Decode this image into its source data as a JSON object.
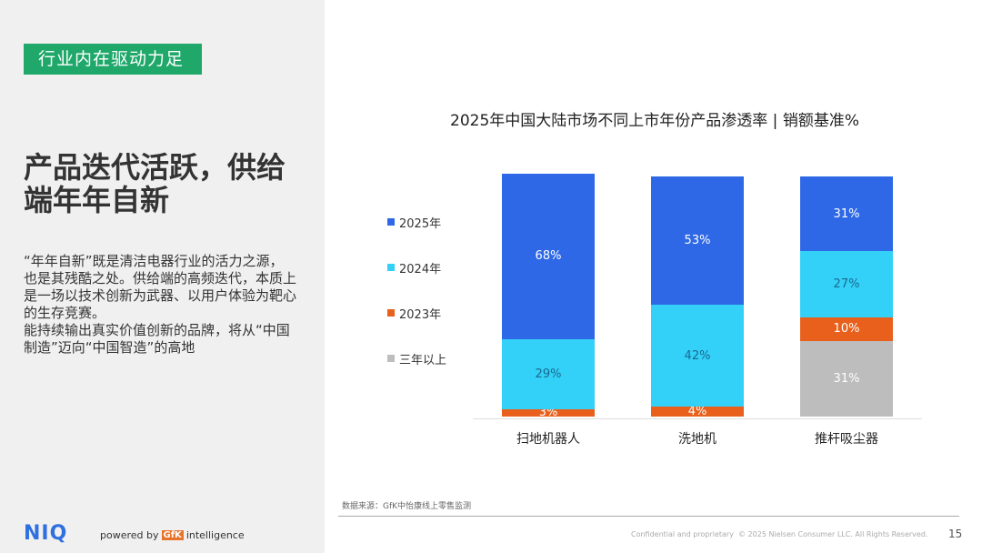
{
  "left": {
    "tag": "行业内在驱动力足",
    "headline": "产品迭代活跃，供给端年年自新",
    "paragraphs": [
      "“年年自新”既是清洁电器行业的活力之源，也是其残酷之处。供给端的高频迭代，本质上是一场以技术创新为武器、以用户体验为靶心的生存竞赛。",
      "能持续输出真实价值创新的品牌，将从“中国制造”迈向“中国智造”的高地"
    ],
    "logo": "NIQ",
    "powered_by": "powered by",
    "gfk": "GfK",
    "intelligence": "intelligence"
  },
  "chart_data": {
    "type": "bar",
    "stacked": true,
    "title": "2025年中国大陆市场不同上市年份产品渗透率 | 销额基准%",
    "categories": [
      "扫地机器人",
      "洗地机",
      "推杆吸尘器"
    ],
    "series": [
      {
        "name": "三年以上",
        "color": "#bdbdbd",
        "label_color": "#ffffff",
        "values": [
          0,
          0,
          31
        ]
      },
      {
        "name": "2023年",
        "color": "#e8601c",
        "label_color": "#ffffff",
        "values": [
          3,
          4,
          10
        ]
      },
      {
        "name": "2024年",
        "color": "#33d0f8",
        "label_color": "#1a6a90",
        "values": [
          29,
          42,
          27
        ]
      },
      {
        "name": "2025年",
        "color": "#2e68e6",
        "label_color": "#ffffff",
        "values": [
          68,
          53,
          31
        ]
      }
    ],
    "legend_order": [
      "2025年",
      "2024年",
      "2023年",
      "三年以上"
    ],
    "legend": "left",
    "ylim": [
      0,
      100
    ]
  },
  "footer": {
    "source": "数据来源：GfK中怡康线上零售监测",
    "confidential": "Confidential and proprietary",
    "copyright": "© 2025 Nielsen Consumer LLC. All Rights Reserved.",
    "page": "15"
  }
}
